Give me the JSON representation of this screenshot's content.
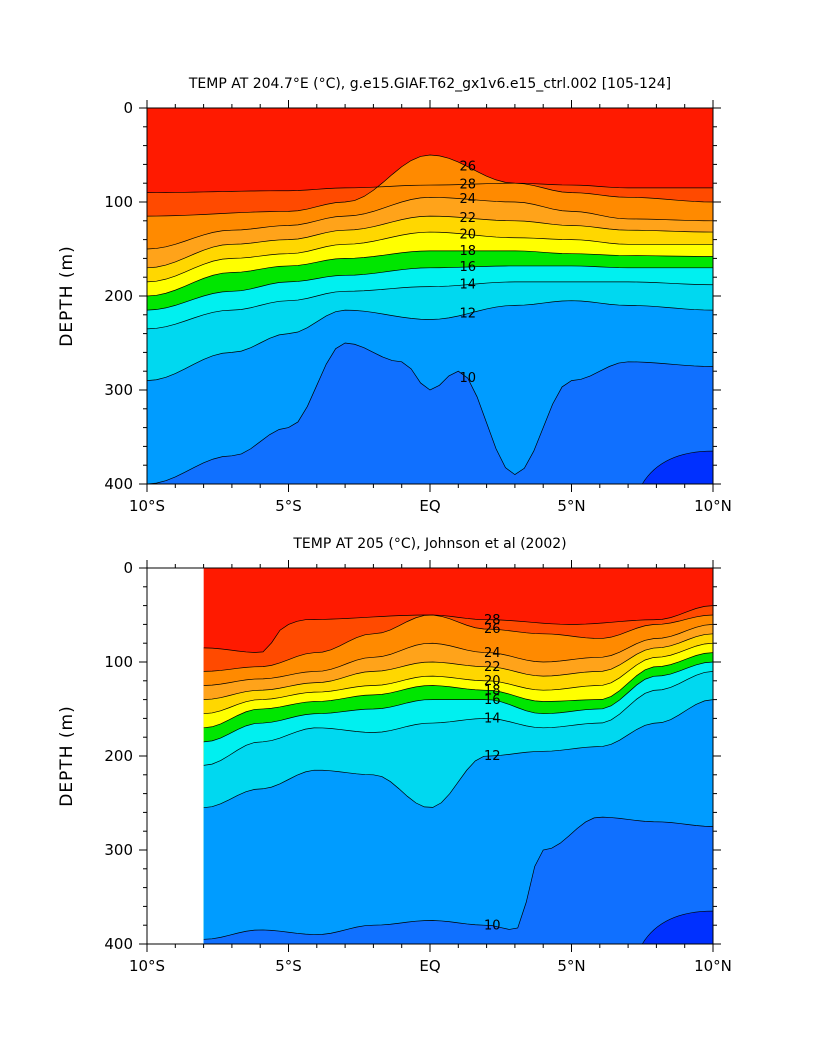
{
  "chart_data": [
    {
      "type": "contour",
      "title": "TEMP AT 204.7°E (°C), g.e15.GIAF.T62_gx1v6.e15_ctrl.002 [105-124]",
      "xlabel": "",
      "ylabel": "DEPTH (m)",
      "xlim": [
        -10,
        10
      ],
      "ylim": [
        400,
        0
      ],
      "x_tick_labels": [
        "10°S",
        "5°S",
        "EQ",
        "5°N",
        "10°N"
      ],
      "y_tick_labels": [
        "0",
        "100",
        "200",
        "300",
        "400"
      ],
      "isotherms": [
        {
          "label": "28",
          "x": [
            -10,
            -5,
            -3,
            0,
            3,
            5,
            7,
            10
          ],
          "y": [
            90,
            88,
            85,
            82,
            80,
            82,
            85,
            85
          ]
        },
        {
          "label": "26",
          "x": [
            -10,
            -5,
            -3,
            0,
            3,
            5,
            7,
            10
          ],
          "y": [
            115,
            110,
            100,
            50,
            80,
            90,
            95,
            100
          ]
        },
        {
          "label": "24",
          "x": [
            -10,
            -7,
            -5,
            -3,
            0,
            3,
            5,
            7,
            10
          ],
          "y": [
            150,
            130,
            125,
            115,
            95,
            100,
            110,
            118,
            120
          ]
        },
        {
          "label": "22",
          "x": [
            -10,
            -7,
            -5,
            -3,
            0,
            3,
            5,
            7,
            10
          ],
          "y": [
            170,
            145,
            140,
            130,
            115,
            120,
            125,
            130,
            132
          ]
        },
        {
          "label": "20",
          "x": [
            -10,
            -7,
            -5,
            -3,
            0,
            3,
            5,
            7,
            10
          ],
          "y": [
            185,
            160,
            155,
            145,
            132,
            138,
            140,
            145,
            145
          ]
        },
        {
          "label": "18",
          "x": [
            -10,
            -7,
            -5,
            -3,
            0,
            3,
            5,
            7,
            10
          ],
          "y": [
            200,
            175,
            168,
            160,
            152,
            152,
            155,
            157,
            158
          ]
        },
        {
          "label": "16",
          "x": [
            -10,
            -7,
            -5,
            -3,
            0,
            3,
            5,
            7,
            10
          ],
          "y": [
            215,
            195,
            185,
            178,
            170,
            168,
            168,
            170,
            170
          ]
        },
        {
          "label": "14",
          "x": [
            -10,
            -7,
            -5,
            -3,
            0,
            3,
            5,
            7,
            10
          ],
          "y": [
            235,
            215,
            205,
            195,
            190,
            185,
            185,
            185,
            188
          ]
        },
        {
          "label": "12",
          "x": [
            -10,
            -7,
            -5,
            -3,
            0,
            3,
            5,
            7,
            10
          ],
          "y": [
            290,
            260,
            240,
            215,
            225,
            210,
            205,
            210,
            215
          ]
        },
        {
          "label": "10",
          "x": [
            -10,
            -7,
            -5,
            -3,
            -1,
            0,
            1,
            3,
            5,
            7,
            10
          ],
          "y": [
            400,
            370,
            340,
            250,
            270,
            300,
            280,
            390,
            290,
            270,
            275
          ]
        }
      ]
    },
    {
      "type": "contour",
      "title": "TEMP AT 205 (°C), Johnson et al (2002)",
      "xlabel": "",
      "ylabel": "DEPTH (m)",
      "xlim": [
        -10,
        10
      ],
      "ylim": [
        400,
        0
      ],
      "data_xlim": [
        -8,
        10
      ],
      "x_tick_labels": [
        "10°S",
        "5°S",
        "EQ",
        "5°N",
        "10°N"
      ],
      "y_tick_labels": [
        "0",
        "100",
        "200",
        "300",
        "400"
      ],
      "isotherms": [
        {
          "label": "28",
          "x": [
            -8,
            -6,
            -5,
            -4.5,
            0,
            2,
            5,
            8,
            10
          ],
          "y": [
            85,
            90,
            60,
            55,
            50,
            55,
            60,
            55,
            40
          ]
        },
        {
          "label": "26",
          "x": [
            -8,
            -6,
            -4,
            -2,
            0,
            2,
            4,
            6,
            8,
            10
          ],
          "y": [
            110,
            105,
            90,
            70,
            50,
            65,
            70,
            75,
            60,
            50
          ]
        },
        {
          "label": "24",
          "x": [
            -8,
            -6,
            -4,
            -2,
            0,
            2,
            4,
            6,
            8,
            10
          ],
          "y": [
            125,
            118,
            110,
            95,
            80,
            90,
            100,
            95,
            75,
            60
          ]
        },
        {
          "label": "22",
          "x": [
            -8,
            -6,
            -4,
            -2,
            0,
            2,
            4,
            6,
            8,
            10
          ],
          "y": [
            140,
            130,
            122,
            110,
            100,
            105,
            115,
            110,
            85,
            70
          ]
        },
        {
          "label": "20",
          "x": [
            -8,
            -6,
            -4,
            -2,
            0,
            2,
            4,
            6,
            8,
            10
          ],
          "y": [
            155,
            140,
            132,
            125,
            115,
            120,
            130,
            125,
            95,
            80
          ]
        },
        {
          "label": "18",
          "x": [
            -8,
            -6,
            -4,
            -2,
            0,
            2,
            4,
            6,
            8,
            10
          ],
          "y": [
            170,
            150,
            142,
            135,
            125,
            130,
            142,
            140,
            105,
            90
          ]
        },
        {
          "label": "16",
          "x": [
            -8,
            -6,
            -4,
            -2,
            0,
            2,
            4,
            6,
            8,
            10
          ],
          "y": [
            185,
            165,
            155,
            150,
            140,
            140,
            155,
            150,
            115,
            100
          ]
        },
        {
          "label": "14",
          "x": [
            -8,
            -6,
            -4,
            -2,
            0,
            2,
            4,
            6,
            8,
            10
          ],
          "y": [
            210,
            185,
            170,
            175,
            165,
            160,
            170,
            165,
            130,
            110
          ]
        },
        {
          "label": "12",
          "x": [
            -8,
            -6,
            -4,
            -2,
            0,
            2,
            4,
            6,
            8,
            10
          ],
          "y": [
            255,
            235,
            215,
            220,
            255,
            200,
            195,
            190,
            165,
            140
          ]
        },
        {
          "label": "10",
          "x": [
            -8,
            -6,
            -4,
            -2,
            0,
            2,
            3,
            4,
            6,
            8,
            10
          ],
          "y": [
            395,
            385,
            390,
            380,
            375,
            380,
            385,
            300,
            265,
            270,
            275
          ]
        }
      ]
    }
  ],
  "colors": {
    "t28": "#ff1a00",
    "t26": "#ff4a00",
    "t24": "#ff8a00",
    "t22": "#ffa31a",
    "t20": "#ffd700",
    "t18": "#ffff00",
    "t17": "#80ff00",
    "t16": "#00e600",
    "t15": "#00e6a0",
    "t14": "#00f0f0",
    "t13": "#00d8f0",
    "t12": "#00b8ff",
    "t11": "#009cff",
    "t10": "#1070ff",
    "t9": "#0030ff"
  }
}
